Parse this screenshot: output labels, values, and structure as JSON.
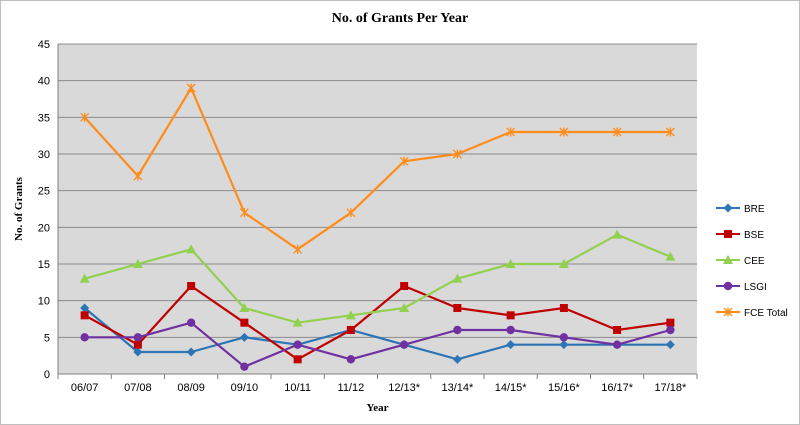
{
  "chart_data": {
    "type": "line",
    "title": "No. of Grants Per Year",
    "xlabel": "Year",
    "ylabel": "No. of Grants",
    "ylim": [
      0,
      45
    ],
    "yticks": [
      "0",
      "5",
      "10",
      "15",
      "20",
      "25",
      "30",
      "35",
      "40",
      "45"
    ],
    "grid": true,
    "legend_position": "right",
    "categories": [
      "06/07",
      "07/08",
      "08/09",
      "09/10",
      "10/11",
      "11/12",
      "12/13*",
      "13/14*",
      "14/15*",
      "15/16*",
      "16/17*",
      "17/18*"
    ],
    "series": [
      {
        "name": "BRE",
        "color": "#2E75B6",
        "marker": "diamond",
        "values": [
          9,
          3,
          3,
          5,
          4,
          6,
          4,
          2,
          4,
          4,
          4,
          4
        ]
      },
      {
        "name": "BSE",
        "color": "#C00000",
        "marker": "square",
        "values": [
          8,
          4,
          12,
          7,
          2,
          6,
          12,
          9,
          8,
          9,
          6,
          7
        ]
      },
      {
        "name": "CEE",
        "color": "#92D050",
        "marker": "triangle",
        "values": [
          13,
          15,
          17,
          9,
          7,
          8,
          9,
          13,
          15,
          15,
          19,
          16
        ]
      },
      {
        "name": "LSGI",
        "color": "#7030A0",
        "marker": "circle",
        "values": [
          5,
          5,
          7,
          1,
          4,
          2,
          4,
          6,
          6,
          5,
          4,
          6
        ]
      },
      {
        "name": "FCE Total",
        "color": "#FF8C1A",
        "marker": "star",
        "values": [
          35,
          27,
          39,
          22,
          17,
          22,
          29,
          30,
          33,
          33,
          33,
          33
        ]
      }
    ]
  }
}
